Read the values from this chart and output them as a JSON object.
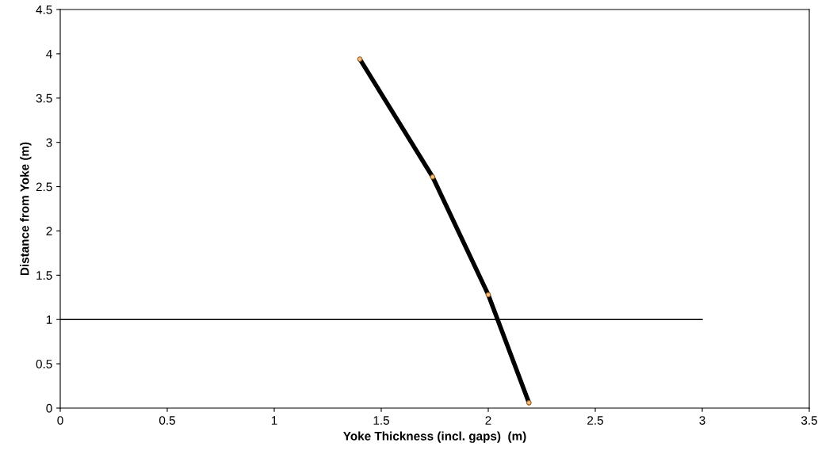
{
  "chart_data": {
    "type": "line",
    "xlabel": "Yoke Thickness (incl. gaps)  (m)",
    "ylabel": "Distance from Yoke (m)",
    "series": [
      {
        "color": "#000000",
        "marker": "circle",
        "x": [
          1.4,
          1.74,
          2.0,
          2.19
        ],
        "values": [
          3.94,
          2.61,
          1.28,
          0.06
        ]
      },
      {
        "color": "#000000",
        "marker": "none",
        "x": [
          0,
          3
        ],
        "values": [
          1,
          1
        ]
      }
    ],
    "xlim": [
      0,
      3.5
    ],
    "xticks": [
      0,
      0.5,
      1,
      1.5,
      2,
      2.5,
      3,
      3.5
    ],
    "ylim": [
      0,
      4.5
    ],
    "yticks": [
      0,
      0.5,
      1,
      1.5,
      2,
      2.5,
      3,
      3.5,
      4,
      4.5
    ],
    "grid": false,
    "legend": false
  }
}
